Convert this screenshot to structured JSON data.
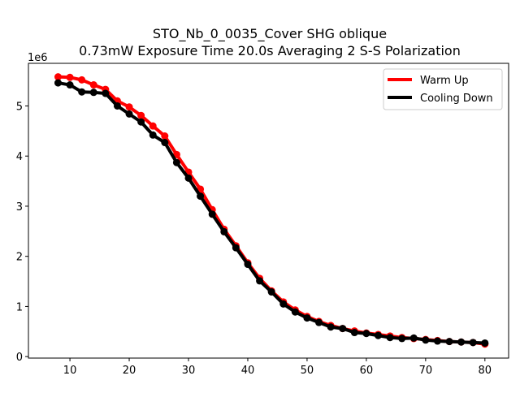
{
  "chart_data": {
    "type": "line",
    "title_line1": "STO_Nb_0_0035_Cover SHG oblique",
    "title_line2": "0.73mW Exposure Time 20.0s Averaging 2 S-S  Polarization",
    "xlabel": "",
    "ylabel": "",
    "y_offset_label": "1e6",
    "xlim": [
      3,
      84
    ],
    "ylim": [
      -0.03,
      5.85
    ],
    "xticks": [
      10,
      20,
      30,
      40,
      50,
      60,
      70,
      80
    ],
    "yticks": [
      0,
      1,
      2,
      3,
      4,
      5
    ],
    "legend_position": "top-right",
    "grid": false,
    "x": [
      8,
      10,
      12,
      14,
      16,
      18,
      20,
      22,
      24,
      26,
      28,
      30,
      32,
      34,
      36,
      38,
      40,
      42,
      44,
      46,
      48,
      50,
      52,
      54,
      56,
      58,
      60,
      62,
      64,
      66,
      68,
      70,
      72,
      74,
      76,
      78,
      80
    ],
    "series": [
      {
        "name": "Warm Up",
        "color": "#ff0000",
        "values": [
          5.58,
          5.57,
          5.52,
          5.42,
          5.33,
          5.1,
          4.98,
          4.81,
          4.6,
          4.4,
          4.03,
          3.68,
          3.34,
          2.93,
          2.54,
          2.21,
          1.87,
          1.56,
          1.31,
          1.09,
          0.93,
          0.8,
          0.7,
          0.62,
          0.56,
          0.51,
          0.47,
          0.44,
          0.41,
          0.38,
          0.36,
          0.34,
          0.32,
          0.3,
          0.29,
          0.28,
          0.25
        ]
      },
      {
        "name": "Cooling Down",
        "color": "#000000",
        "values": [
          5.46,
          5.42,
          5.28,
          5.27,
          5.25,
          5.0,
          4.84,
          4.68,
          4.42,
          4.27,
          3.87,
          3.56,
          3.2,
          2.84,
          2.49,
          2.17,
          1.84,
          1.51,
          1.29,
          1.05,
          0.89,
          0.77,
          0.68,
          0.59,
          0.56,
          0.48,
          0.46,
          0.42,
          0.38,
          0.36,
          0.37,
          0.33,
          0.31,
          0.3,
          0.29,
          0.28,
          0.27
        ]
      }
    ]
  }
}
